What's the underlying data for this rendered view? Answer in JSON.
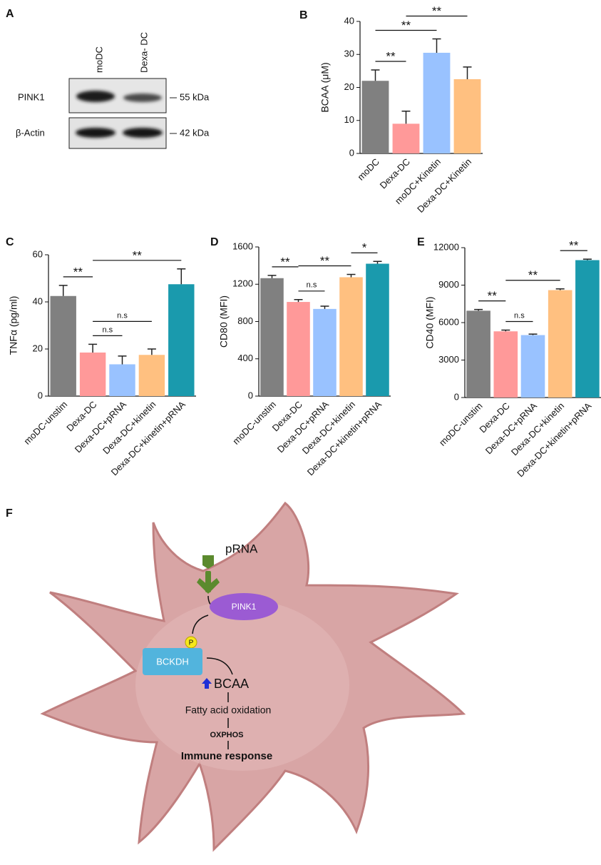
{
  "blot": {
    "label": "A",
    "lanes": [
      "moDC",
      "Dexa- DC"
    ],
    "rows": [
      {
        "protein": "PINK1",
        "size": "55 kDa"
      },
      {
        "protein": "β-Actin",
        "size": "42 kDa"
      }
    ]
  },
  "chart_data": [
    {
      "type": "bar",
      "label": "B",
      "ylabel": "BCAA (μM)",
      "categories": [
        "moDC",
        "Dexa-DC",
        "moDC+Kinetin",
        "Dexa-DC+Kinetin"
      ],
      "values": [
        22,
        9,
        30.5,
        22.5
      ],
      "errors": [
        3.3,
        3.8,
        4.2,
        3.7
      ],
      "colors": [
        "#808080",
        "#ff9999",
        "#99c2ff",
        "#ffc080"
      ],
      "ylim": [
        0,
        40
      ],
      "yticks": [
        0,
        10,
        20,
        30,
        40
      ],
      "annotations": [
        {
          "text": "**",
          "groups": [
            0,
            1
          ]
        },
        {
          "text": "**",
          "groups": [
            0,
            2
          ]
        },
        {
          "text": "**",
          "groups": [
            1,
            3
          ]
        }
      ]
    },
    {
      "type": "bar",
      "label": "C",
      "ylabel": "TNFα (pg/ml)",
      "categories": [
        "moDC-unstim",
        "Dexa-DC",
        "Dexa-DC+pRNA",
        "Dexa-DC+kinetin",
        "Dexa-DC+kinetin+pRNA"
      ],
      "values": [
        42.5,
        18.5,
        13.5,
        17.5,
        47.5
      ],
      "errors": [
        4.5,
        3.5,
        3.5,
        2.5,
        6.5
      ],
      "colors": [
        "#808080",
        "#ff9999",
        "#99c2ff",
        "#ffc080",
        "#1a9aad"
      ],
      "ylim": [
        0,
        60
      ],
      "yticks": [
        0,
        20,
        40,
        60
      ],
      "annotations": [
        {
          "text": "**",
          "groups": [
            0,
            1
          ]
        },
        {
          "text": "n.s",
          "groups": [
            1,
            2
          ]
        },
        {
          "text": "n.s",
          "groups": [
            1,
            3
          ]
        },
        {
          "text": "**",
          "groups": [
            1,
            4
          ]
        }
      ]
    },
    {
      "type": "bar",
      "label": "D",
      "ylabel": "CD80 (MFI)",
      "categories": [
        "moDC-unstim",
        "Dexa-DC",
        "Dexa-DC+pRNA",
        "Dexa-DC+kinetin",
        "Dexa-DC+kinetin+pRNA"
      ],
      "values": [
        1265,
        1010,
        935,
        1275,
        1420
      ],
      "errors": [
        30,
        25,
        30,
        30,
        25
      ],
      "colors": [
        "#808080",
        "#ff9999",
        "#99c2ff",
        "#ffc080",
        "#1a9aad"
      ],
      "ylim": [
        0,
        1600
      ],
      "yticks": [
        0,
        400,
        800,
        1200,
        1600
      ],
      "annotations": [
        {
          "text": "**",
          "groups": [
            0,
            1
          ]
        },
        {
          "text": "n.s",
          "groups": [
            1,
            2
          ]
        },
        {
          "text": "**",
          "groups": [
            1,
            3
          ]
        },
        {
          "text": "*",
          "groups": [
            3,
            4
          ]
        }
      ]
    },
    {
      "type": "bar",
      "label": "E",
      "ylabel": "CD40 (MFI)",
      "categories": [
        "moDC-unstim",
        "Dexa-DC",
        "Dexa-DC+pRNA",
        "Dexa-DC+kinetin",
        "Dexa-DC+kinetin+pRNA"
      ],
      "values": [
        6950,
        5300,
        5000,
        8600,
        11000
      ],
      "errors": [
        100,
        100,
        80,
        100,
        80
      ],
      "colors": [
        "#808080",
        "#ff9999",
        "#99c2ff",
        "#ffc080",
        "#1a9aad"
      ],
      "ylim": [
        0,
        12000
      ],
      "yticks": [
        0,
        3000,
        6000,
        9000,
        12000
      ],
      "annotations": [
        {
          "text": "**",
          "groups": [
            0,
            1
          ]
        },
        {
          "text": "n.s",
          "groups": [
            1,
            2
          ]
        },
        {
          "text": "**",
          "groups": [
            1,
            3
          ]
        },
        {
          "text": "**",
          "groups": [
            3,
            4
          ]
        }
      ]
    }
  ],
  "diagram": {
    "label": "F",
    "ligand": "pRNA",
    "kinase": "PINK1",
    "phospho": "P",
    "enzyme": "BCKDH",
    "metabolite": "BCAA",
    "steps": [
      "Fatty acid oxidation",
      "OXPHOS",
      "Immune response"
    ]
  }
}
